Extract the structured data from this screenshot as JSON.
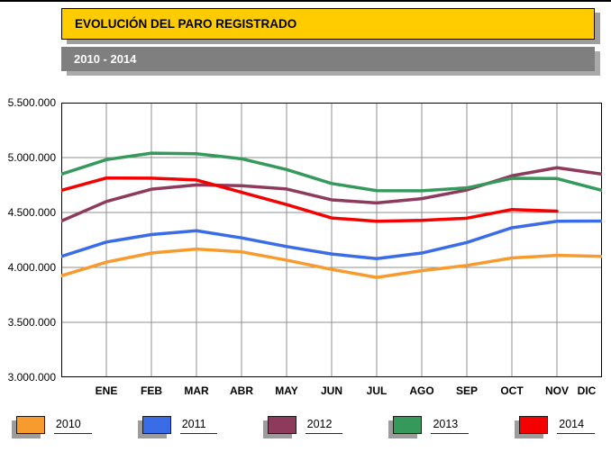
{
  "banners": {
    "title": "EVOLUCIÓN DEL PARO REGISTRADO",
    "subtitle": "2010 - 2014"
  },
  "chart_data": {
    "type": "line",
    "title": "EVOLUCIÓN DEL PARO REGISTRADO",
    "subtitle": "2010 - 2014",
    "x_labels": [
      "ENE",
      "FEB",
      "MAR",
      "ABR",
      "MAY",
      "JUN",
      "JUL",
      "AGO",
      "SEP",
      "OCT",
      "NOV",
      "DIC"
    ],
    "y_ticks": [
      "5.500.000",
      "5.000.000",
      "4.500.000",
      "4.000.000",
      "3.500.000",
      "3.000.000"
    ],
    "ylim": [
      3000000,
      5500000
    ],
    "grid": "on",
    "legend_position": "bottom",
    "note_first_point": "each line starts at the plot left edge one step before ENE",
    "series": [
      {
        "name": "2010",
        "color": "#F79B2F",
        "values": [
          3924000,
          4048000,
          4131000,
          4167000,
          4142000,
          4066000,
          3982000,
          3909000,
          3970000,
          4018000,
          4086000,
          4110000,
          4100000
        ]
      },
      {
        "name": "2011",
        "color": "#3B6CE8",
        "values": [
          4100000,
          4231000,
          4299000,
          4334000,
          4269000,
          4190000,
          4122000,
          4080000,
          4131000,
          4227000,
          4361000,
          4420000,
          4422000
        ]
      },
      {
        "name": "2012",
        "color": "#8E3A5C",
        "values": [
          4422000,
          4600000,
          4712000,
          4751000,
          4744000,
          4714000,
          4615000,
          4587000,
          4626000,
          4705000,
          4834000,
          4908000,
          4849000
        ]
      },
      {
        "name": "2013",
        "color": "#35995C",
        "values": [
          4849000,
          4981000,
          5040000,
          5035000,
          4989000,
          4891000,
          4764000,
          4699000,
          4698000,
          4724000,
          4811000,
          4809000,
          4701000
        ]
      },
      {
        "name": "2014",
        "color": "#F40000",
        "values": [
          4701000,
          4814000,
          4812000,
          4796000,
          4684000,
          4572000,
          4450000,
          4420000,
          4428000,
          4448000,
          4527000,
          4512000
        ]
      }
    ]
  }
}
